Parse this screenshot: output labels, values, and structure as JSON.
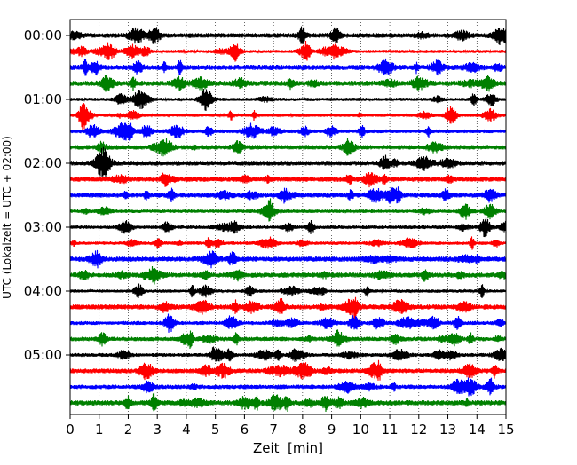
{
  "chart_data": {
    "type": "line",
    "title": "",
    "xlabel": "Zeit  [min]",
    "ylabel": "UTC (Lokalzeit = UTC + 02:00)",
    "xlim": [
      0,
      15
    ],
    "x_ticks": [
      0,
      1,
      2,
      3,
      4,
      5,
      6,
      7,
      8,
      9,
      10,
      11,
      12,
      13,
      14,
      15
    ],
    "x_tick_labels": [
      "0",
      "1",
      "2",
      "3",
      "4",
      "5",
      "6",
      "7",
      "8",
      "9",
      "10",
      "11",
      "12",
      "13",
      "14",
      "15"
    ],
    "grid": "vertical dotted lines at each minute",
    "trace_interval": "00:15",
    "trace_count": 24,
    "y_tick_labels": [
      "00:00",
      "01:00",
      "02:00",
      "03:00",
      "04:00",
      "05:00"
    ],
    "y_tick_trace_index": [
      0,
      4,
      8,
      12,
      16,
      20
    ],
    "trace_colors": [
      "#000000",
      "#ff0000",
      "#0000ff",
      "#008000"
    ],
    "traces": [
      {
        "start": "00:00",
        "color": "#000000"
      },
      {
        "start": "00:15",
        "color": "#ff0000"
      },
      {
        "start": "00:30",
        "color": "#0000ff"
      },
      {
        "start": "00:45",
        "color": "#008000"
      },
      {
        "start": "01:00",
        "color": "#000000"
      },
      {
        "start": "01:15",
        "color": "#ff0000"
      },
      {
        "start": "01:30",
        "color": "#0000ff"
      },
      {
        "start": "01:45",
        "color": "#008000"
      },
      {
        "start": "02:00",
        "color": "#000000"
      },
      {
        "start": "02:15",
        "color": "#ff0000"
      },
      {
        "start": "02:30",
        "color": "#0000ff"
      },
      {
        "start": "02:45",
        "color": "#008000"
      },
      {
        "start": "03:00",
        "color": "#000000"
      },
      {
        "start": "03:15",
        "color": "#ff0000"
      },
      {
        "start": "03:30",
        "color": "#0000ff"
      },
      {
        "start": "03:45",
        "color": "#008000"
      },
      {
        "start": "04:00",
        "color": "#000000"
      },
      {
        "start": "04:15",
        "color": "#ff0000"
      },
      {
        "start": "04:30",
        "color": "#0000ff"
      },
      {
        "start": "04:45",
        "color": "#008000"
      },
      {
        "start": "05:00",
        "color": "#000000"
      },
      {
        "start": "05:15",
        "color": "#ff0000"
      },
      {
        "start": "05:30",
        "color": "#0000ff"
      },
      {
        "start": "05:45",
        "color": "#008000"
      }
    ]
  }
}
